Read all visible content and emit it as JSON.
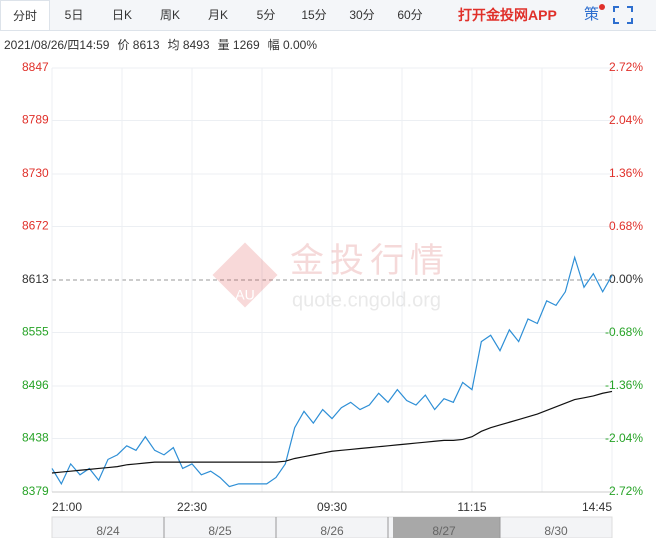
{
  "tabs": [
    "分时",
    "5日",
    "日K",
    "周K",
    "月K",
    "5分",
    "15分",
    "30分",
    "60分"
  ],
  "app_link": "打开金投网APP",
  "strategy": "策",
  "info": {
    "datetime": "2021/08/26/四14:59",
    "items": [
      {
        "label": "价",
        "value": "8613"
      },
      {
        "label": "均",
        "value": "8493"
      },
      {
        "label": "量",
        "value": "1269"
      },
      {
        "label": "幅",
        "value": "0.00%"
      }
    ]
  },
  "watermark": {
    "title": "金投行情",
    "url": "quote.cngold.org",
    "logo": "AU"
  },
  "chart_data": {
    "type": "line",
    "x": [
      0,
      4,
      8,
      12,
      16,
      20,
      24,
      28,
      32,
      36,
      40,
      44,
      48,
      52,
      56,
      60,
      64,
      68,
      72,
      76,
      80,
      84,
      88,
      92,
      96,
      100,
      104,
      108,
      112,
      116,
      120,
      124,
      128,
      132,
      136,
      140,
      144,
      148,
      152,
      156,
      160,
      164,
      168,
      172,
      176,
      180,
      184,
      188,
      192,
      196,
      200,
      204,
      208,
      212,
      216,
      220,
      224,
      228,
      232,
      236,
      240
    ],
    "xlim": [
      0,
      240
    ],
    "xticks": [
      {
        "value": 0,
        "label": "21:00"
      },
      {
        "value": 30,
        "label": null
      },
      {
        "value": 60,
        "label": "22:30"
      },
      {
        "value": 90,
        "label": null
      },
      {
        "value": 120,
        "label": "09:30"
      },
      {
        "value": 150,
        "label": null
      },
      {
        "value": 180,
        "label": "11:15"
      },
      {
        "value": 210,
        "label": null
      },
      {
        "value": 240,
        "label": "14:45"
      }
    ],
    "ylim": [
      8379,
      8847
    ],
    "yticks": [
      8847,
      8789,
      8730,
      8672,
      8613,
      8555,
      8496,
      8438,
      8379
    ],
    "y2lim": [
      -2.72,
      2.72
    ],
    "y2ticks": [
      {
        "value": 2.72,
        "label": "2.72%"
      },
      {
        "value": 2.04,
        "label": "2.04%"
      },
      {
        "value": 1.36,
        "label": "1.36%"
      },
      {
        "value": 0.68,
        "label": "0.68%"
      },
      {
        "value": 0,
        "label": "0.00%"
      },
      {
        "value": -0.68,
        "label": "-0.68%"
      },
      {
        "value": -1.36,
        "label": "-1.36%"
      },
      {
        "value": -2.04,
        "label": "-2.04%"
      },
      {
        "value": -2.72,
        "label": "-2.72%"
      }
    ],
    "grid": true,
    "up_color": "#e0302a",
    "down_color": "#27a327",
    "flat_color": "#333333",
    "series": [
      {
        "name": "价",
        "color": "#2e8fd6",
        "values": [
          8405,
          8388,
          8410,
          8398,
          8405,
          8392,
          8415,
          8420,
          8430,
          8425,
          8440,
          8425,
          8420,
          8428,
          8405,
          8410,
          8398,
          8402,
          8395,
          8385,
          8388,
          8388,
          8388,
          8388,
          8395,
          8410,
          8450,
          8468,
          8455,
          8470,
          8460,
          8472,
          8478,
          8470,
          8475,
          8488,
          8478,
          8492,
          8480,
          8475,
          8486,
          8470,
          8482,
          8478,
          8500,
          8492,
          8545,
          8552,
          8535,
          8558,
          8545,
          8570,
          8565,
          8590,
          8585,
          8600,
          8638,
          8605,
          8620,
          8600,
          8618
        ]
      },
      {
        "name": "均",
        "color": "#111111",
        "values": [
          8400,
          8401,
          8402,
          8403,
          8404,
          8405,
          8406,
          8407,
          8409,
          8410,
          8411,
          8412,
          8412,
          8412,
          8412,
          8412,
          8412,
          8412,
          8412,
          8412,
          8412,
          8412,
          8412,
          8412,
          8412,
          8413,
          8416,
          8418,
          8420,
          8422,
          8424,
          8425,
          8426,
          8427,
          8428,
          8429,
          8430,
          8431,
          8432,
          8433,
          8434,
          8435,
          8436,
          8436,
          8437,
          8440,
          8446,
          8450,
          8453,
          8456,
          8459,
          8462,
          8465,
          8469,
          8473,
          8477,
          8481,
          8483,
          8485,
          8488,
          8490
        ]
      }
    ],
    "navigator_dates": [
      "8/24",
      "8/25",
      "8/26",
      "8/27",
      "8/30"
    ]
  }
}
